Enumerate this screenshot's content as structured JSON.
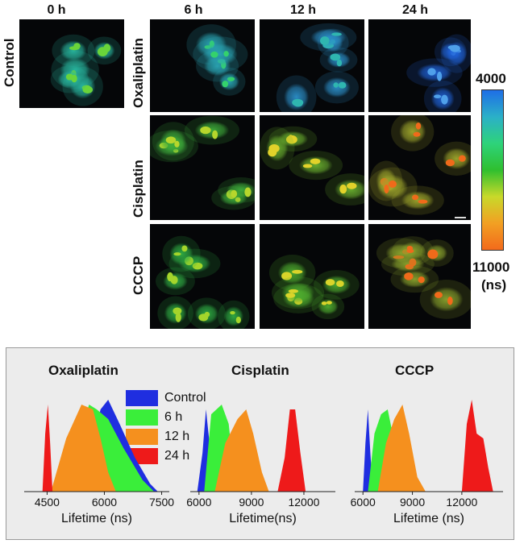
{
  "time_labels": [
    "0 h",
    "6 h",
    "12 h",
    "24 h"
  ],
  "row_labels": {
    "control": "Control",
    "oxaliplatin": "Oxaliplatin",
    "cisplatin": "Cisplatin",
    "cccp": "CCCP"
  },
  "colorbar": {
    "top_value": "4000",
    "bottom_value": "11000",
    "unit": "(ns)",
    "colors": [
      "#1e6ee6",
      "#2bb0c8",
      "#2ed37a",
      "#2fbf2f",
      "#c8d92a",
      "#f2a023",
      "#f36a1b"
    ]
  },
  "panels": {
    "control": {
      "color": "#29b8a0",
      "nucleolus": "#6ad43a"
    },
    "oxaliplatin": [
      {
        "time": "6 h",
        "color": "#2aa7b6",
        "nucleolus": "#34d26c"
      },
      {
        "time": "12 h",
        "color": "#2b8fc9",
        "nucleolus": "#2fb6b0"
      },
      {
        "time": "24 h",
        "color": "#1f62d8",
        "nucleolus": "#4fa0ea"
      }
    ],
    "cisplatin": [
      {
        "time": "6 h",
        "color": "#3fae3b",
        "nucleolus": "#b6d62c"
      },
      {
        "time": "12 h",
        "color": "#6bb12f",
        "nucleolus": "#e2d22a"
      },
      {
        "time": "24 h",
        "color": "#9fa72c",
        "nucleolus": "#f06a1a"
      }
    ],
    "cccp": [
      {
        "time": "6 h",
        "color": "#2fae44",
        "nucleolus": "#a4d52b"
      },
      {
        "time": "12 h",
        "color": "#4fae2f",
        "nucleolus": "#d9d42a"
      },
      {
        "time": "24 h",
        "color": "#8aa32d",
        "nucleolus": "#f06a1a"
      }
    ]
  },
  "histograms": {
    "legend": [
      {
        "label": "Control",
        "color": "#1f2ee0"
      },
      {
        "label": "6 h",
        "color": "#3aee3a"
      },
      {
        "label": "12 h",
        "color": "#f5901e"
      },
      {
        "label": "24 h",
        "color": "#ee1a1a"
      }
    ],
    "oxaliplatin": {
      "title": "Oxaliplatin",
      "ticks": [
        "4500",
        "6000",
        "7500"
      ],
      "xlabel": "Lifetime (ns)"
    },
    "cisplatin": {
      "title": "Cisplatin",
      "ticks": [
        "6000",
        "9000",
        "12000"
      ],
      "xlabel": "Lifetime(ns)"
    },
    "cccp": {
      "title": "CCCP",
      "ticks": [
        "6000",
        "9000",
        "12000"
      ],
      "xlabel": "Lifetime (ns)"
    }
  },
  "chart_data": [
    {
      "type": "area",
      "title": "Oxaliplatin",
      "xlabel": "Lifetime (ns)",
      "xlim": [
        3900,
        7700
      ],
      "series": [
        {
          "name": "Control",
          "x": [
            5300,
            5600,
            5900,
            6100,
            6400,
            6800,
            7200,
            7400
          ],
          "y": [
            0,
            0.35,
            0.85,
            0.95,
            0.7,
            0.35,
            0.08,
            0
          ]
        },
        {
          "name": "6 h",
          "x": [
            4800,
            5300,
            5600,
            5800,
            6100,
            6500,
            7000,
            7300
          ],
          "y": [
            0,
            0.5,
            0.9,
            0.85,
            0.75,
            0.45,
            0.12,
            0
          ]
        },
        {
          "name": "12 h",
          "x": [
            4600,
            5000,
            5400,
            5700,
            5900,
            6100,
            6300
          ],
          "y": [
            0,
            0.55,
            0.9,
            0.85,
            0.55,
            0.2,
            0
          ]
        },
        {
          "name": "24 h",
          "x": [
            4380,
            4450,
            4520,
            4580,
            4640
          ],
          "y": [
            0,
            0.6,
            0.9,
            0.5,
            0
          ]
        }
      ]
    },
    {
      "type": "area",
      "title": "Cisplatin",
      "xlabel": "Lifetime(ns)",
      "xlim": [
        5500,
        13800
      ],
      "series": [
        {
          "name": "Control",
          "x": [
            5900,
            6200,
            6400,
            6600,
            6800
          ],
          "y": [
            0,
            0.4,
            0.85,
            0.5,
            0
          ]
        },
        {
          "name": "6 h",
          "x": [
            6300,
            6700,
            7000,
            7300,
            7700,
            8100
          ],
          "y": [
            0,
            0.8,
            0.85,
            0.9,
            0.7,
            0
          ]
        },
        {
          "name": "12 h",
          "x": [
            6900,
            7500,
            8200,
            8700,
            9100,
            9600,
            10000
          ],
          "y": [
            0,
            0.5,
            0.75,
            0.85,
            0.6,
            0.2,
            0
          ]
        },
        {
          "name": "24 h",
          "x": [
            10500,
            10900,
            11200,
            11500,
            11800,
            12100
          ],
          "y": [
            0,
            0.35,
            0.85,
            0.85,
            0.4,
            0
          ]
        }
      ]
    },
    {
      "type": "area",
      "title": "CCCP",
      "xlabel": "Lifetime (ns)",
      "xlim": [
        5500,
        14500
      ],
      "series": [
        {
          "name": "Control",
          "x": [
            6000,
            6150,
            6300,
            6450,
            6600
          ],
          "y": [
            0,
            0.5,
            0.85,
            0.4,
            0
          ]
        },
        {
          "name": "6 h",
          "x": [
            6300,
            6700,
            7100,
            7500,
            7800,
            8200
          ],
          "y": [
            0,
            0.6,
            0.8,
            0.85,
            0.6,
            0
          ]
        },
        {
          "name": "12 h",
          "x": [
            6900,
            7400,
            7900,
            8400,
            8800,
            9300,
            9800
          ],
          "y": [
            0,
            0.5,
            0.75,
            0.9,
            0.6,
            0.15,
            0
          ]
        },
        {
          "name": "24 h",
          "x": [
            12000,
            12300,
            12600,
            12900,
            13300,
            13600,
            13900
          ],
          "y": [
            0,
            0.7,
            0.95,
            0.6,
            0.55,
            0.25,
            0
          ]
        }
      ]
    }
  ]
}
